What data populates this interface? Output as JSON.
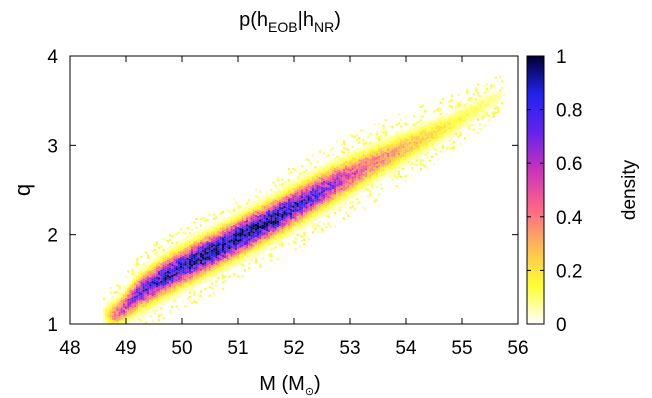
{
  "chart_data": {
    "type": "heatmap",
    "title": {
      "base": "p(h",
      "sub1": "EOB",
      "sep": "|h",
      "sub2": "NR",
      "close": ")"
    },
    "xlabel": {
      "base": "M  (M",
      "sub": "⊙",
      "close": ")"
    },
    "ylabel": "q",
    "xlim": [
      48,
      56
    ],
    "ylim": [
      1,
      4
    ],
    "x_ticks": [
      "48",
      "49",
      "50",
      "51",
      "52",
      "53",
      "54",
      "55",
      "56"
    ],
    "y_ticks": [
      "1",
      "2",
      "3",
      "4"
    ],
    "colorbar": {
      "label": "density",
      "range": [
        0,
        1
      ],
      "ticks": [
        "0",
        "0.2",
        "0.4",
        "0.6",
        "0.8",
        "1"
      ],
      "colors": [
        "#ffffff",
        "#ffff33",
        "#ffbb55",
        "#ff6688",
        "#cc33bb",
        "#6622ee",
        "#2222ee",
        "#000033"
      ]
    },
    "density_ridge": {
      "points": [
        {
          "M": 48.8,
          "q": 1.12,
          "peak": 0.45
        },
        {
          "M": 49.2,
          "q": 1.35,
          "peak": 0.7
        },
        {
          "M": 49.7,
          "q": 1.55,
          "peak": 0.85
        },
        {
          "M": 50.2,
          "q": 1.72,
          "peak": 0.92
        },
        {
          "M": 50.7,
          "q": 1.88,
          "peak": 0.95
        },
        {
          "M": 51.2,
          "q": 2.05,
          "peak": 0.97
        },
        {
          "M": 51.7,
          "q": 2.22,
          "peak": 0.93
        },
        {
          "M": 52.2,
          "q": 2.4,
          "peak": 0.8
        },
        {
          "M": 52.7,
          "q": 2.58,
          "peak": 0.62
        },
        {
          "M": 53.3,
          "q": 2.78,
          "peak": 0.42
        },
        {
          "M": 54.0,
          "q": 3.0,
          "peak": 0.28
        },
        {
          "M": 54.8,
          "q": 3.25,
          "peak": 0.16
        },
        {
          "M": 55.6,
          "q": 3.55,
          "peak": 0.08
        }
      ],
      "width_q": [
        0.08,
        0.11,
        0.12,
        0.12,
        0.12,
        0.12,
        0.12,
        0.12,
        0.12,
        0.11,
        0.1,
        0.08,
        0.06
      ]
    }
  }
}
